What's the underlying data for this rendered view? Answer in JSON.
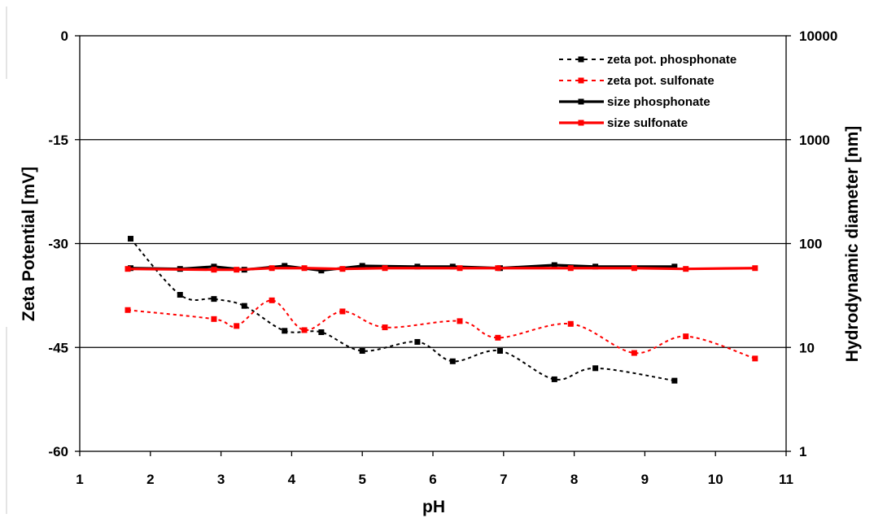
{
  "chart_data": {
    "type": "line",
    "title": "",
    "xlabel": "pH",
    "ylabel_left": "Zeta Potential [mV]",
    "ylabel_right": "Hydrodynamic diameter [nm]",
    "xlim": [
      1,
      11
    ],
    "ylim_left": [
      -60,
      0
    ],
    "ylim_right": [
      1,
      10000
    ],
    "y_right_scale": "log",
    "x_ticks": [
      "1",
      "2",
      "3",
      "4",
      "5",
      "6",
      "7",
      "8",
      "9",
      "10",
      "11"
    ],
    "y_left_ticks": [
      "0",
      "-15",
      "-30",
      "-45",
      "-60"
    ],
    "y_right_ticks": [
      "10000",
      "1000",
      "100",
      "10",
      "1"
    ],
    "grid": "horizontal",
    "legend_position": "top-right",
    "series": [
      {
        "name": "zeta pot. phosphonate",
        "axis": "left",
        "color": "#000000",
        "style": "dashed",
        "x": [
          1.72,
          2.42,
          2.9,
          3.33,
          3.9,
          4.42,
          5.0,
          5.78,
          6.28,
          6.95,
          7.72,
          8.3,
          9.42
        ],
        "y": [
          -29.3,
          -37.4,
          -38.0,
          -39.0,
          -42.6,
          -42.8,
          -45.5,
          -44.2,
          -47.0,
          -45.5,
          -49.6,
          -48.0,
          -49.8
        ]
      },
      {
        "name": "zeta pot. sulfonate",
        "axis": "left",
        "color": "#ff0000",
        "style": "dashed",
        "x": [
          1.68,
          2.9,
          3.22,
          3.72,
          4.18,
          4.72,
          5.32,
          6.38,
          6.92,
          7.95,
          8.85,
          9.58,
          10.56
        ],
        "y": [
          -39.6,
          -40.9,
          -41.9,
          -38.2,
          -42.5,
          -39.8,
          -42.1,
          -41.2,
          -43.6,
          -41.6,
          -45.8,
          -43.4,
          -46.6
        ]
      },
      {
        "name": "size phosphonate",
        "axis": "right",
        "color": "#000000",
        "style": "solid",
        "x": [
          1.72,
          2.42,
          2.9,
          3.33,
          3.9,
          4.42,
          5.0,
          5.78,
          6.28,
          6.95,
          7.72,
          8.3,
          9.42
        ],
        "y": [
          58,
          57,
          60,
          56,
          61,
          55,
          61,
          60,
          60,
          58,
          62,
          60,
          60
        ]
      },
      {
        "name": "size sulfonate",
        "axis": "right",
        "color": "#ff0000",
        "style": "solid",
        "x": [
          1.68,
          2.9,
          3.22,
          3.72,
          4.18,
          4.72,
          5.32,
          6.38,
          6.92,
          7.95,
          8.85,
          9.58,
          10.56
        ],
        "y": [
          57,
          56,
          56,
          58,
          58,
          57,
          58,
          58,
          58,
          58,
          58,
          57,
          58
        ]
      }
    ]
  }
}
